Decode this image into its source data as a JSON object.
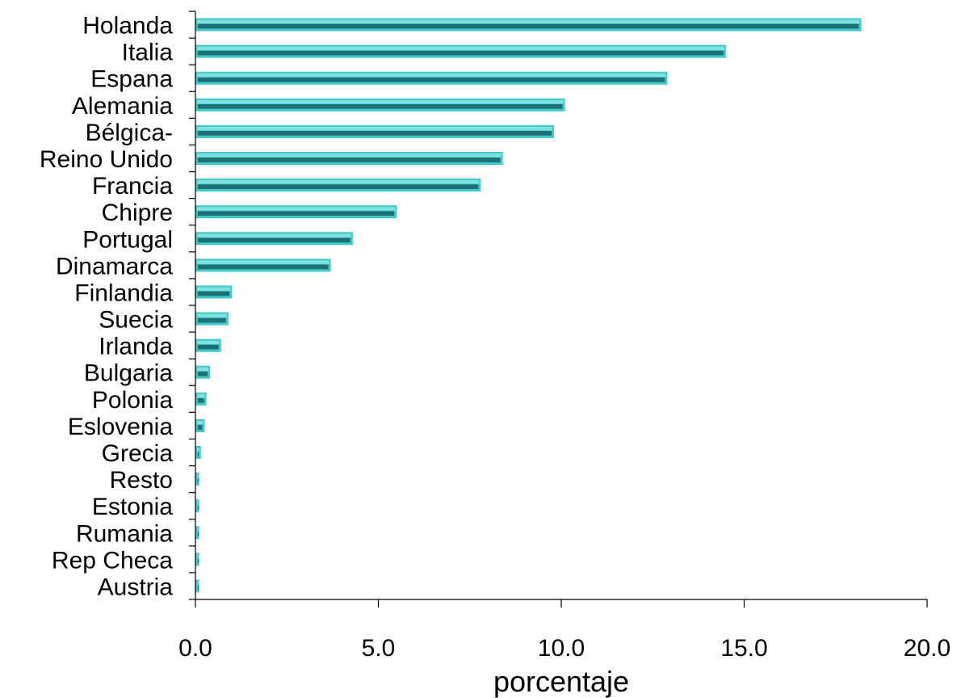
{
  "chart_data": {
    "type": "bar",
    "orientation": "horizontal",
    "categories": [
      "Holanda",
      "Italia",
      "Espana",
      "Alemania",
      "Bélgica-",
      "Reino Unido",
      "Francia",
      "Chipre",
      "Portugal",
      "Dinamarca",
      "Finlandia",
      "Suecia",
      "Irlanda",
      "Bulgaria",
      "Polonia",
      "Eslovenia",
      "Grecia",
      "Resto",
      "Estonia",
      "Rumania",
      "Rep Checa",
      "Austria"
    ],
    "values": [
      18.2,
      14.5,
      12.9,
      10.1,
      9.8,
      8.4,
      7.8,
      5.5,
      4.3,
      3.7,
      1.0,
      0.9,
      0.7,
      0.4,
      0.3,
      0.25,
      0.15,
      0.1,
      0.1,
      0.1,
      0.1,
      0.1
    ],
    "xlabel": "porcentaje",
    "ylabel": "",
    "title": "",
    "xlim": [
      0,
      20
    ],
    "xticks": [
      "0.0",
      "5.0",
      "10.0",
      "15.0",
      "20.0"
    ],
    "grid": false,
    "legend": "none",
    "bar_color": "#3ec9c9",
    "bar_shadow_color": "#1d6f74"
  }
}
